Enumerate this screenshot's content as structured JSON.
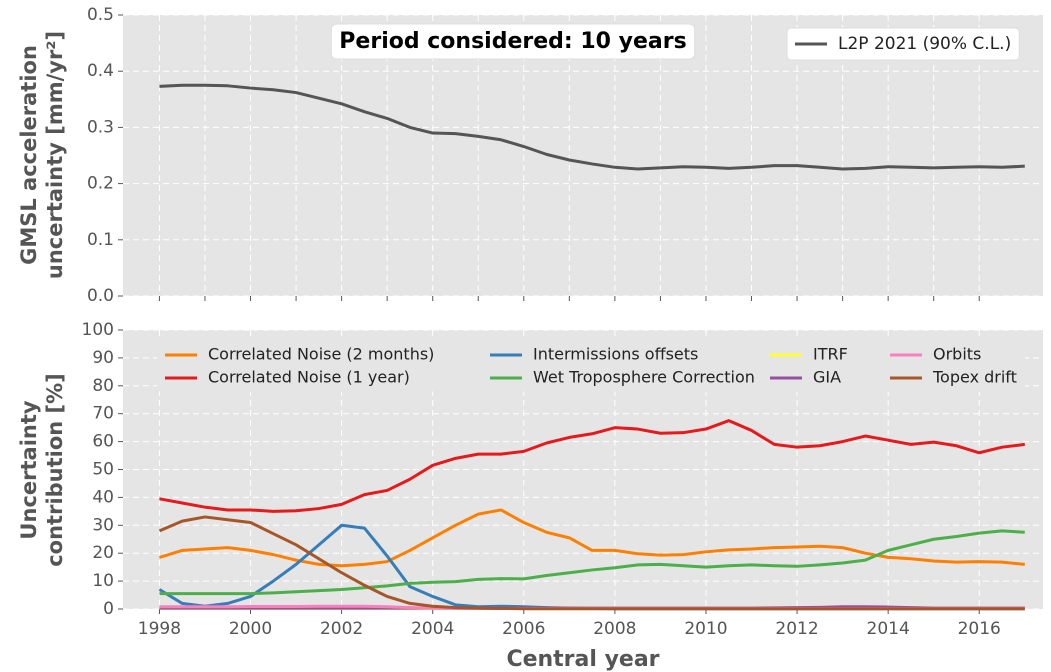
{
  "chart_data": [
    {
      "type": "line",
      "annotation": "Period considered: 10 years",
      "ylabel": [
        "GMSL acceleration",
        "uncertainty [mm/yr²]"
      ],
      "xlim": [
        1997.2,
        2017.4
      ],
      "xticks": [
        1998,
        1999,
        2000,
        2001,
        2002,
        2003,
        2004,
        2005,
        2006,
        2007,
        2008,
        2009,
        2010,
        2011,
        2012,
        2013,
        2014,
        2015,
        2016
      ],
      "ylim": [
        0,
        0.5
      ],
      "yticks": [
        {
          "value": 0,
          "label": "0.0"
        },
        0.1,
        0.2,
        0.3,
        0.4,
        0.5
      ],
      "grid": true,
      "legend": "upper right",
      "x": [
        1998,
        1998.5,
        1999,
        1999.5,
        2000,
        2000.5,
        2001,
        2001.5,
        2002,
        2002.5,
        2003,
        2003.5,
        2004,
        2004.5,
        2005,
        2005.5,
        2006,
        2006.5,
        2007,
        2007.5,
        2008,
        2008.5,
        2009,
        2009.5,
        2010,
        2010.5,
        2011,
        2011.5,
        2012,
        2012.5,
        2013,
        2013.5,
        2014,
        2014.5,
        2015,
        2015.5,
        2016,
        2016.5,
        2017
      ],
      "series": [
        {
          "name": "L2P 2021 (90% C.L.)",
          "color": "#555555",
          "values": [
            0.373,
            0.375,
            0.375,
            0.374,
            0.37,
            0.367,
            0.362,
            0.352,
            0.342,
            0.328,
            0.316,
            0.3,
            0.29,
            0.289,
            0.284,
            0.278,
            0.266,
            0.252,
            0.242,
            0.235,
            0.229,
            0.226,
            0.228,
            0.23,
            0.229,
            0.227,
            0.229,
            0.232,
            0.232,
            0.229,
            0.226,
            0.227,
            0.23,
            0.229,
            0.228,
            0.229,
            0.23,
            0.229,
            0.231
          ]
        }
      ]
    },
    {
      "type": "line",
      "ylabel": [
        "Uncertainty",
        "contribution [%]"
      ],
      "xlabel": "Central year",
      "xlim": [
        1997.2,
        2017.4
      ],
      "xticks": [
        1998,
        2000,
        2002,
        2004,
        2006,
        2008,
        2010,
        2012,
        2014,
        2016
      ],
      "ylim": [
        0,
        100
      ],
      "yticks": [
        0,
        10,
        20,
        30,
        40,
        50,
        60,
        70,
        80,
        90,
        100
      ],
      "grid": true,
      "legend": "upper center",
      "legend_ncol": 4,
      "x": [
        1998,
        1998.5,
        1999,
        1999.5,
        2000,
        2000.5,
        2001,
        2001.5,
        2002,
        2002.5,
        2003,
        2003.5,
        2004,
        2004.5,
        2005,
        2005.5,
        2006,
        2006.5,
        2007,
        2007.5,
        2008,
        2008.5,
        2009,
        2009.5,
        2010,
        2010.5,
        2011,
        2011.5,
        2012,
        2012.5,
        2013,
        2013.5,
        2014,
        2014.5,
        2015,
        2015.5,
        2016,
        2016.5,
        2017
      ],
      "series": [
        {
          "name": "Correlated Noise (2 months)",
          "color": "#ff7f00",
          "values": [
            18.5,
            21,
            21.5,
            22,
            21,
            19.5,
            17.5,
            16,
            15.5,
            16,
            17,
            21,
            25.5,
            30,
            34,
            35.5,
            31,
            27.5,
            25.5,
            21,
            21,
            19.8,
            19.3,
            19.5,
            20.5,
            21.2,
            21.5,
            22,
            22.2,
            22.5,
            22,
            20,
            18.5,
            18,
            17.2,
            16.8,
            17,
            16.8,
            16
          ]
        },
        {
          "name": "Correlated Noise (1 year)",
          "color": "#e41a1c",
          "values": [
            39.5,
            38,
            36.5,
            35.5,
            35.5,
            35,
            35.2,
            36,
            37.5,
            41,
            42.5,
            46.5,
            51.5,
            54,
            55.5,
            55.5,
            56.5,
            59.5,
            61.5,
            62.8,
            65,
            64.5,
            63,
            63.2,
            64.5,
            67.5,
            64,
            59,
            58,
            58.5,
            60,
            62,
            60.5,
            59,
            59.8,
            58.5,
            56,
            58,
            59
          ]
        },
        {
          "name": "Intermissions offsets",
          "color": "#377eb8",
          "values": [
            7,
            2,
            1,
            2,
            4.5,
            10,
            16,
            23,
            30,
            29,
            19,
            8,
            4.5,
            1.5,
            0.8,
            1,
            0.8,
            0.5,
            0.3,
            0.2,
            0.1,
            0.1,
            0.1,
            0.1,
            0.1,
            0.1,
            0.1,
            0.1,
            0.1,
            0.1,
            0.1,
            0.1,
            0.1,
            0.1,
            0.1,
            0.1,
            0.1,
            0.1,
            0.1
          ]
        },
        {
          "name": "Wet Troposphere Correction",
          "color": "#4daf4a",
          "values": [
            5.5,
            5.5,
            5.5,
            5.5,
            5.5,
            5.8,
            6.2,
            6.6,
            7,
            7.6,
            8.3,
            9.2,
            9.6,
            9.8,
            10.6,
            10.9,
            10.8,
            12,
            13,
            14,
            14.8,
            15.8,
            16,
            15.5,
            15,
            15.5,
            15.8,
            15.5,
            15.3,
            15.8,
            16.5,
            17.5,
            21,
            23,
            25,
            26,
            27.2,
            28,
            27.5
          ]
        },
        {
          "name": "ITRF",
          "color": "#ffff33",
          "values": [
            0.2,
            0.2,
            0.2,
            0.2,
            0.2,
            0.2,
            0.2,
            0.2,
            0.2,
            0.2,
            0.2,
            0.2,
            0.2,
            0.2,
            0.2,
            0.2,
            0.2,
            0.2,
            0.2,
            0.2,
            0.2,
            0.2,
            0.2,
            0.2,
            0.2,
            0.2,
            0.2,
            0.2,
            0.2,
            0.2,
            0.2,
            0.2,
            0.2,
            0.2,
            0.2,
            0.2,
            0.2,
            0.2,
            0.2
          ]
        },
        {
          "name": "GIA",
          "color": "#984ea3",
          "values": [
            0.3,
            0.3,
            0.3,
            0.3,
            0.3,
            0.3,
            0.3,
            0.3,
            0.3,
            0.3,
            0.3,
            0.3,
            0.3,
            0.3,
            0.3,
            0.3,
            0.3,
            0.3,
            0.3,
            0.3,
            0.3,
            0.3,
            0.3,
            0.3,
            0.3,
            0.3,
            0.3,
            0.4,
            0.5,
            0.6,
            0.8,
            0.8,
            0.7,
            0.5,
            0.3,
            0.3,
            0.3,
            0.3,
            0.3
          ]
        },
        {
          "name": "Orbits",
          "color": "#f781bf",
          "values": [
            0.8,
            0.8,
            0.8,
            0.8,
            0.9,
            0.9,
            0.9,
            1,
            1,
            1,
            0.8,
            0.5,
            0.3,
            0.2,
            0.2,
            0.2,
            0.2,
            0.2,
            0.2,
            0.2,
            0.2,
            0.2,
            0.2,
            0.2,
            0.2,
            0.2,
            0.2,
            0.2,
            0.2,
            0.2,
            0.2,
            0.2,
            0.2,
            0.2,
            0.2,
            0.2,
            0.2,
            0.2,
            0.2
          ]
        },
        {
          "name": "Topex drift",
          "color": "#a65628",
          "values": [
            28,
            31.5,
            33,
            32,
            31,
            27,
            23,
            18,
            13,
            8.5,
            4.5,
            2,
            1,
            0.5,
            0.3,
            0.2,
            0.1,
            0.1,
            0.1,
            0.1,
            0.1,
            0.1,
            0.1,
            0.1,
            0.1,
            0.1,
            0.1,
            0.1,
            0.1,
            0.1,
            0.1,
            0.1,
            0.1,
            0.1,
            0.1,
            0.1,
            0.1,
            0.1,
            0.1
          ]
        }
      ]
    }
  ]
}
